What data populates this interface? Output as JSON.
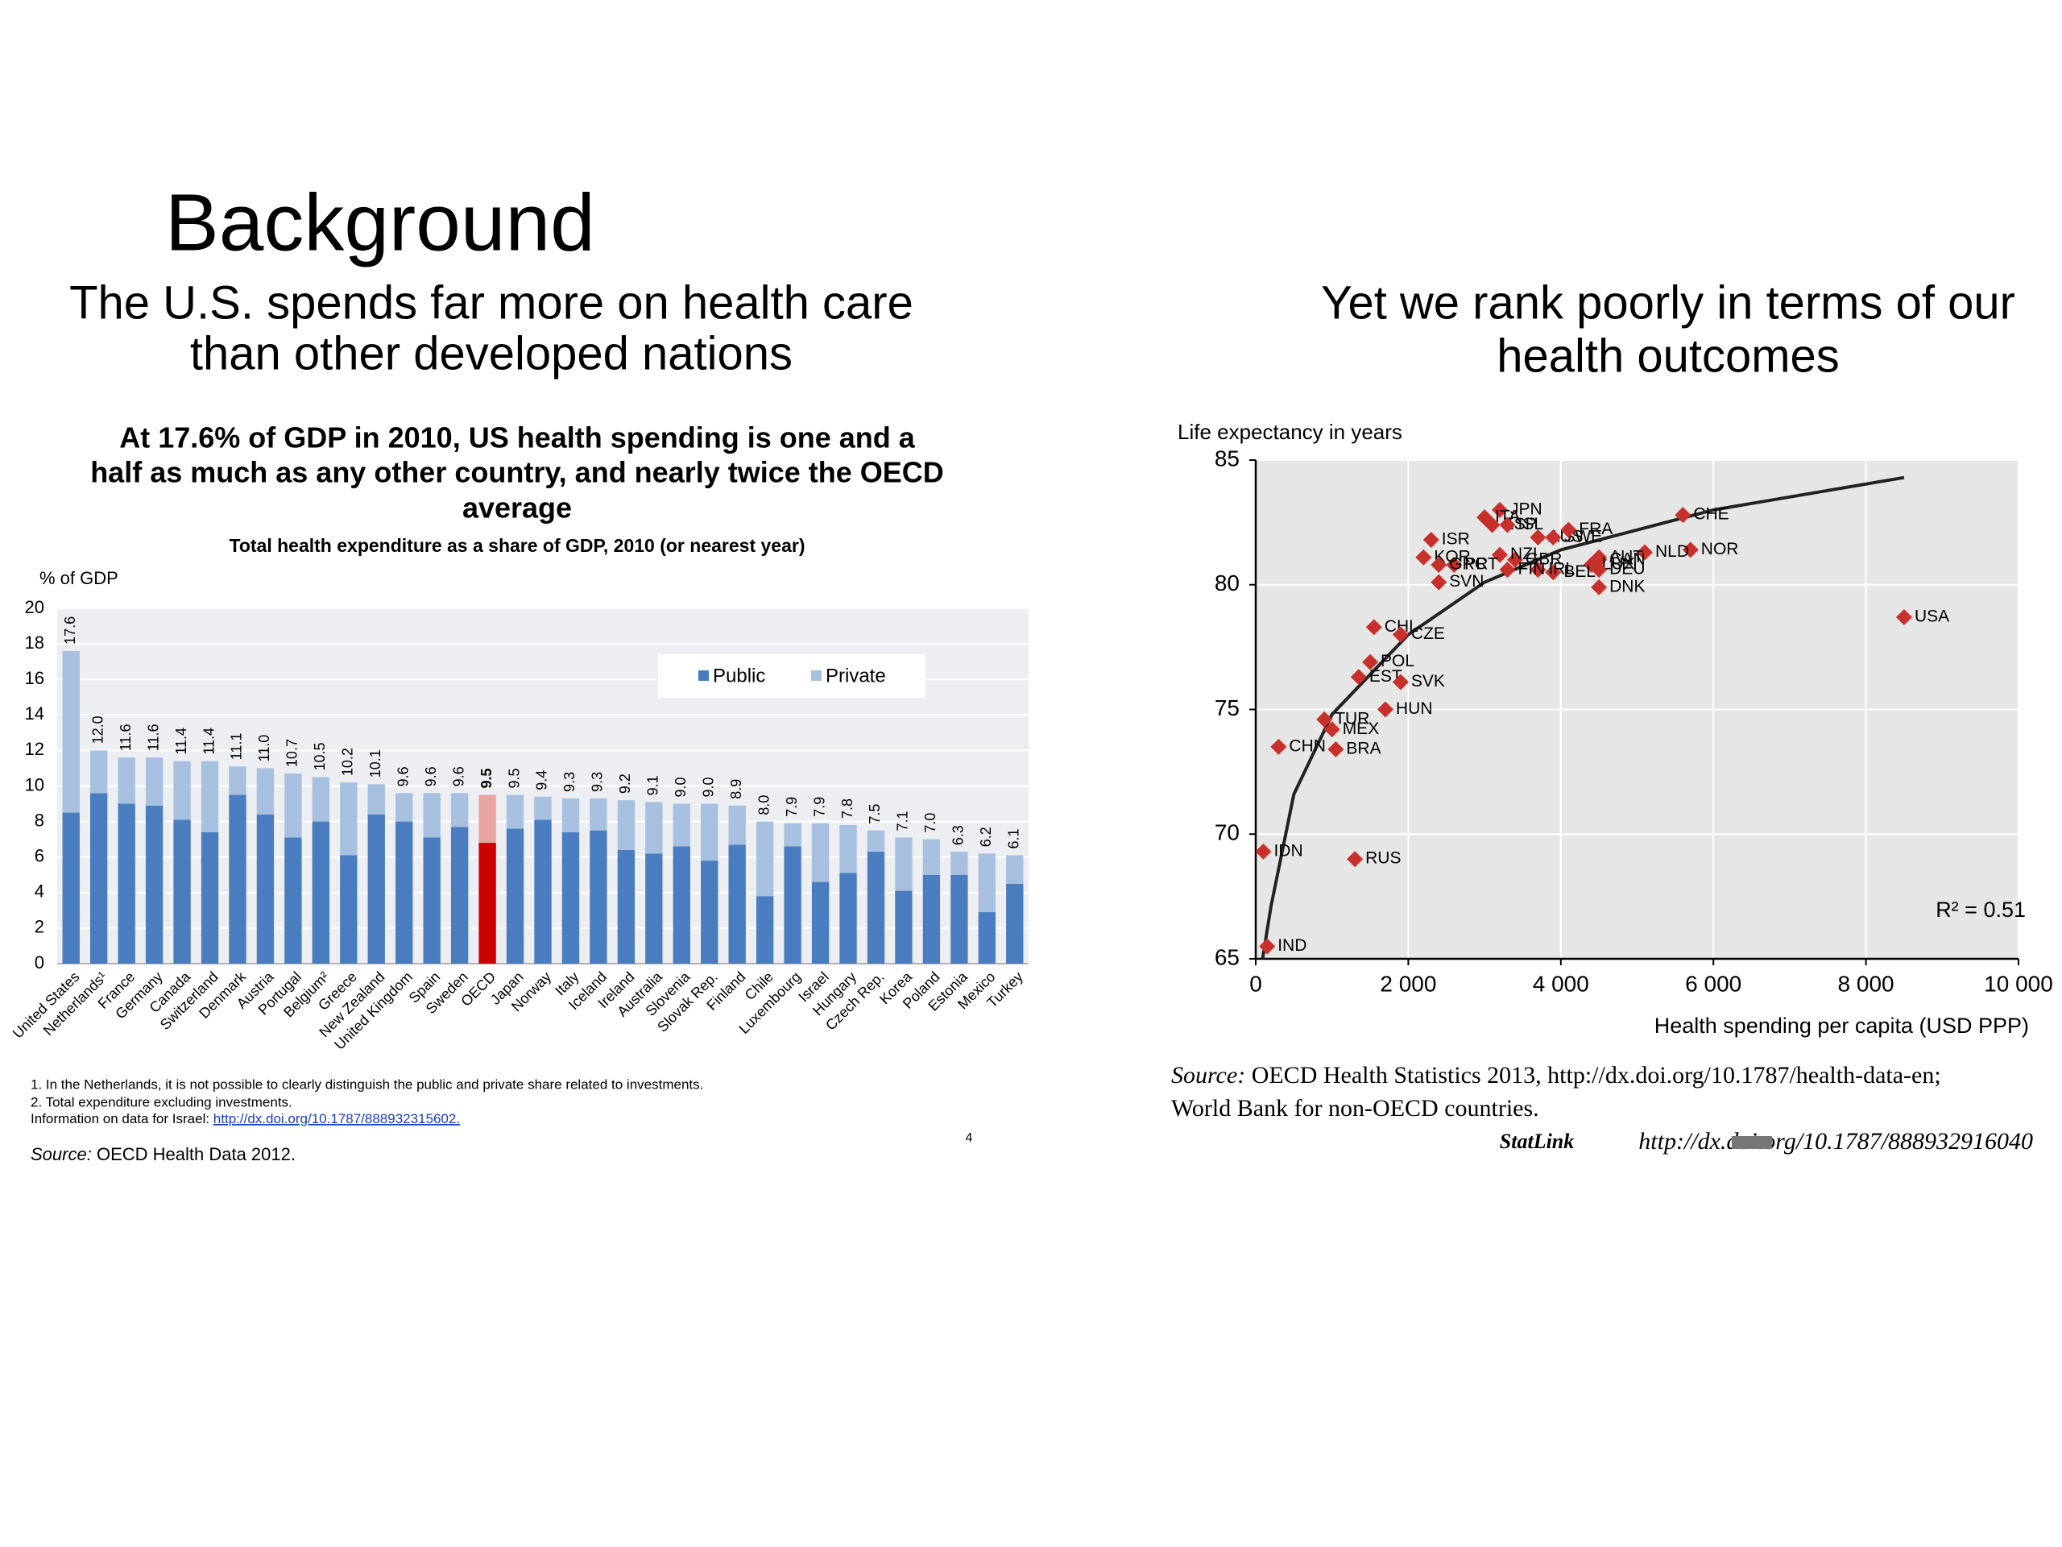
{
  "slide": {
    "title": "Background",
    "left_heading": [
      "The U.S. spends far more on health care",
      "than other developed nations"
    ],
    "right_heading": [
      "Yet we rank poorly in terms of our",
      "health outcomes"
    ],
    "page_number": 4
  },
  "chart_data": [
    {
      "type": "bar",
      "stacked": true,
      "title_lines": [
        "At 17.6% of GDP in 2010, US health spending is one and a",
        "half as much as any other country, and nearly twice the OECD",
        "average"
      ],
      "subtitle": "Total health expenditure as a share of GDP, 2010 (or nearest year)",
      "y_label": "% of GDP",
      "categories": [
        "United States",
        "Netherlands¹",
        "France",
        "Germany",
        "Canada",
        "Switzerland",
        "Denmark",
        "Austria",
        "Portugal",
        "Belgium²",
        "Greece",
        "New Zealand",
        "United Kingdom",
        "Spain",
        "Sweden",
        "OECD",
        "Japan",
        "Norway",
        "Italy",
        "Iceland",
        "Ireland",
        "Australia",
        "Slovenia",
        "Slovak Rep.",
        "Finland",
        "Chile",
        "Luxembourg",
        "Israel",
        "Hungary",
        "Czech Rep.",
        "Korea",
        "Poland",
        "Estonia",
        "Mexico",
        "Turkey"
      ],
      "series": [
        {
          "name": "Public",
          "color": "#4a7dbf",
          "values": [
            8.5,
            9.6,
            9.0,
            8.9,
            8.1,
            7.4,
            9.5,
            8.4,
            7.1,
            8.0,
            6.1,
            8.4,
            8.0,
            7.1,
            7.7,
            6.8,
            7.6,
            8.1,
            7.4,
            7.5,
            6.4,
            6.2,
            6.6,
            5.8,
            6.7,
            3.8,
            6.6,
            4.6,
            5.1,
            6.3,
            4.1,
            5.0,
            5.0,
            2.9,
            4.5
          ]
        },
        {
          "name": "Private",
          "color": "#a7c0df",
          "values": [
            9.1,
            2.4,
            2.6,
            2.7,
            3.3,
            4.0,
            1.6,
            2.6,
            3.6,
            2.5,
            4.1,
            1.7,
            1.6,
            2.5,
            1.9,
            2.7,
            1.9,
            1.3,
            1.9,
            1.8,
            2.8,
            2.9,
            2.4,
            3.2,
            2.2,
            4.2,
            1.3,
            3.3,
            2.7,
            1.2,
            3.0,
            2.0,
            1.3,
            3.3,
            1.6
          ]
        }
      ],
      "totals": [
        17.6,
        12,
        11.6,
        11.6,
        11.4,
        11.4,
        11.1,
        11,
        10.7,
        10.5,
        10.2,
        10.1,
        9.6,
        9.6,
        9.6,
        9.5,
        9.5,
        9.4,
        9.3,
        9.3,
        9.2,
        9.1,
        9,
        9,
        8.9,
        8,
        7.9,
        7.9,
        7.8,
        7.5,
        7.1,
        7,
        6.3,
        6.2,
        6.1
      ],
      "total_labels": [
        "17.6",
        "12.0",
        "11.6",
        "11.6",
        "11.4",
        "11.4",
        "11.1",
        "11.0",
        "10.7",
        "10.5",
        "10.2",
        "10.1",
        "9.6",
        "9.6",
        "9.6",
        "9.5",
        "9.5",
        "9.4",
        "9.3",
        "9.3",
        "9.2",
        "9.1",
        "9.0",
        "9.0",
        "8.9",
        "8.0",
        "7.9",
        "7.9",
        "7.8",
        "7.5",
        "7.1",
        "7.0",
        "6.3",
        "6.2",
        "6.1"
      ],
      "highlight": {
        "category": "OECD",
        "colors": [
          "#cc0000",
          "#e8a3a3"
        ]
      },
      "ylim": [
        0,
        20
      ],
      "yticks": [
        0,
        2,
        4,
        6,
        8,
        10,
        12,
        14,
        16,
        18,
        20
      ],
      "grid": true,
      "legend": "upper right",
      "notes": [
        "1. In the Netherlands, it is not possible to clearly distinguish the public and private share related to investments.",
        "2. Total expenditure excluding investments."
      ],
      "israel_note": "Information on data for Israel:",
      "israel_link": "http://dx.doi.org/10.1787/888932315602.",
      "source_label": "Source:",
      "source": "OECD Health Data 2012."
    },
    {
      "type": "scatter",
      "y_label": "Life expectancy in years",
      "x_label": "Health spending per capita (USD PPP)",
      "point_labels": [
        "USA",
        "CHE",
        "NOR",
        "JPN",
        "ITA",
        "ESP",
        "ISL",
        "AUS",
        "SWE",
        "FRA",
        "NLD",
        "AUT",
        "CAN",
        "LUX",
        "DEU",
        "DNK",
        "BEL",
        "IRL",
        "GBR",
        "FIN",
        "NZL",
        "PRT",
        "ISR",
        "KOR",
        "GRC",
        "SVN",
        "CHL",
        "CZE",
        "POL",
        "EST",
        "SVK",
        "HUN",
        "TUR",
        "MEX",
        "BRA",
        "CHN",
        "RUS",
        "IDN",
        "IND"
      ],
      "x": [
        8500,
        5600,
        5700,
        3200,
        3000,
        3100,
        3300,
        3700,
        3900,
        4100,
        5100,
        4500,
        4500,
        4400,
        4500,
        4500,
        3900,
        3700,
        3400,
        3300,
        3200,
        2600,
        2300,
        2200,
        2400,
        2400,
        1550,
        1900,
        1500,
        1350,
        1900,
        1700,
        900,
        1000,
        1050,
        300,
        1300,
        100,
        150
      ],
      "y": [
        78.7,
        82.8,
        81.4,
        83.0,
        82.7,
        82.4,
        82.4,
        81.9,
        81.9,
        82.2,
        81.3,
        81.1,
        81.0,
        80.8,
        80.6,
        79.9,
        80.5,
        80.6,
        81.0,
        80.6,
        81.2,
        80.8,
        81.8,
        81.1,
        80.8,
        80.1,
        78.3,
        78.0,
        76.9,
        76.3,
        76.1,
        75.0,
        74.6,
        74.2,
        73.4,
        73.5,
        69.0,
        69.3,
        65.5
      ],
      "color": "#c8302c",
      "trend": {
        "x": [
          90,
          200,
          500,
          1000,
          2000,
          3000,
          4000,
          6000,
          8500
        ],
        "y": [
          65,
          67.1,
          71.6,
          74.8,
          78.0,
          80.1,
          81.4,
          83.0,
          84.3
        ]
      },
      "trend_color": "#222222",
      "xlim": [
        0,
        10000
      ],
      "ylim": [
        65,
        85
      ],
      "xticks": [
        0,
        {
          "value": 2000,
          "label": "2 000"
        },
        {
          "value": 4000,
          "label": "4 000"
        },
        {
          "value": 6000,
          "label": "6 000"
        },
        {
          "value": 8000,
          "label": "8 000"
        },
        {
          "value": 10000,
          "label": "10 000"
        }
      ],
      "yticks": [
        65,
        70,
        75,
        80,
        85
      ],
      "grid": true,
      "annotation": "R² = 0.51",
      "source_label": "Source:",
      "source_lines": [
        "OECD Health Statistics 2013, http://dx.doi.org/10.1787/health-data-en;",
        "World Bank for non-OECD countries."
      ],
      "statlink_label": "StatLink",
      "statlink_url": "http://dx.doi.org/10.1787/888932916040"
    }
  ]
}
